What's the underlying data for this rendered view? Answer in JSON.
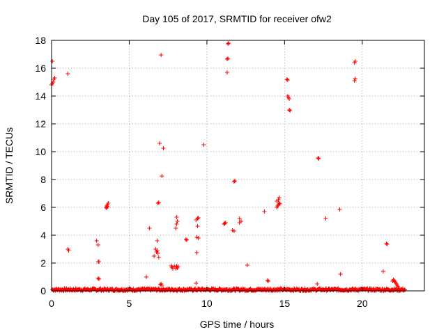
{
  "chart_data": {
    "type": "scatter",
    "title": "Day 105 of 2017, SRMTID for receiver ofw2",
    "xlabel": "GPS time / hours",
    "ylabel": "SRMTID / TECUs",
    "xlim": [
      0,
      24
    ],
    "ylim": [
      0,
      18
    ],
    "xticks": [
      0,
      5,
      10,
      15,
      20
    ],
    "yticks": [
      0,
      2,
      4,
      6,
      8,
      10,
      12,
      14,
      16,
      18
    ],
    "grid": true,
    "marker": "+",
    "color": "#ff0000",
    "baseline": {
      "x_start": 0.05,
      "x_end": 22.75,
      "y_min": 0.0,
      "y_max": 0.18
    },
    "series": [
      {
        "name": "SRMTID",
        "points": [
          [
            0.0,
            14.8
          ],
          [
            0.05,
            14.9
          ],
          [
            0.1,
            15.0
          ],
          [
            0.15,
            15.2
          ],
          [
            0.2,
            15.3
          ],
          [
            0.05,
            16.5
          ],
          [
            1.05,
            15.6
          ],
          [
            1.05,
            3.0
          ],
          [
            1.1,
            2.9
          ],
          [
            2.9,
            3.6
          ],
          [
            3.0,
            3.3
          ],
          [
            3.0,
            2.1
          ],
          [
            3.05,
            2.1
          ],
          [
            3.0,
            0.9
          ],
          [
            3.05,
            0.85
          ],
          [
            3.5,
            6.0
          ],
          [
            3.55,
            6.1
          ],
          [
            3.6,
            6.2
          ],
          [
            3.65,
            6.3
          ],
          [
            3.55,
            5.95
          ],
          [
            3.6,
            6.05
          ],
          [
            6.1,
            1.0
          ],
          [
            6.3,
            4.5
          ],
          [
            6.6,
            2.5
          ],
          [
            6.7,
            3.0
          ],
          [
            6.75,
            2.8
          ],
          [
            6.8,
            2.9
          ],
          [
            6.8,
            3.6
          ],
          [
            6.85,
            2.7
          ],
          [
            6.9,
            2.4
          ],
          [
            6.85,
            6.3
          ],
          [
            6.9,
            6.35
          ],
          [
            6.95,
            10.6
          ],
          [
            7.05,
            16.95
          ],
          [
            7.1,
            8.25
          ],
          [
            7.2,
            10.25
          ],
          [
            7.0,
            0.45
          ],
          [
            7.05,
            0.5
          ],
          [
            7.1,
            0.4
          ],
          [
            7.7,
            1.8
          ],
          [
            7.75,
            1.7
          ],
          [
            7.8,
            1.6
          ],
          [
            7.9,
            1.75
          ],
          [
            8.0,
            1.6
          ],
          [
            8.05,
            1.8
          ],
          [
            8.1,
            1.65
          ],
          [
            8.15,
            1.75
          ],
          [
            8.0,
            4.5
          ],
          [
            8.05,
            4.8
          ],
          [
            8.1,
            5.0
          ],
          [
            8.05,
            5.3
          ],
          [
            8.65,
            3.7
          ],
          [
            8.7,
            3.65
          ],
          [
            9.3,
            0.55
          ],
          [
            9.35,
            2.75
          ],
          [
            9.3,
            5.1
          ],
          [
            9.4,
            5.2
          ],
          [
            9.45,
            5.25
          ],
          [
            9.4,
            4.65
          ],
          [
            9.35,
            3.85
          ],
          [
            9.45,
            3.8
          ],
          [
            9.8,
            10.5
          ],
          [
            11.1,
            4.8
          ],
          [
            11.15,
            4.85
          ],
          [
            11.2,
            4.9
          ],
          [
            11.3,
            16.65
          ],
          [
            11.35,
            16.7
          ],
          [
            11.3,
            15.7
          ],
          [
            11.35,
            17.75
          ],
          [
            11.4,
            17.8
          ],
          [
            11.65,
            4.35
          ],
          [
            11.75,
            4.3
          ],
          [
            11.75,
            7.85
          ],
          [
            11.8,
            7.9
          ],
          [
            12.1,
            5.2
          ],
          [
            12.1,
            4.9
          ],
          [
            12.2,
            5.0
          ],
          [
            12.6,
            1.85
          ],
          [
            13.7,
            5.7
          ],
          [
            13.9,
            0.75
          ],
          [
            13.95,
            0.7
          ],
          [
            14.5,
            6.0
          ],
          [
            14.55,
            6.1
          ],
          [
            14.6,
            6.2
          ],
          [
            14.65,
            6.3
          ],
          [
            14.5,
            6.45
          ],
          [
            14.6,
            6.55
          ],
          [
            14.65,
            6.7
          ],
          [
            14.7,
            6.25
          ],
          [
            15.15,
            15.2
          ],
          [
            15.2,
            15.15
          ],
          [
            15.2,
            14.0
          ],
          [
            15.25,
            13.9
          ],
          [
            15.3,
            13.8
          ],
          [
            15.3,
            13.0
          ],
          [
            15.35,
            12.95
          ],
          [
            17.1,
            0.5
          ],
          [
            17.15,
            9.55
          ],
          [
            17.2,
            9.5
          ],
          [
            17.65,
            5.2
          ],
          [
            18.55,
            5.85
          ],
          [
            18.6,
            1.2
          ],
          [
            19.5,
            15.1
          ],
          [
            19.55,
            15.25
          ],
          [
            19.5,
            16.4
          ],
          [
            19.55,
            16.5
          ],
          [
            21.35,
            1.4
          ],
          [
            21.55,
            3.4
          ],
          [
            21.6,
            3.35
          ],
          [
            21.95,
            0.7
          ],
          [
            22.0,
            0.8
          ],
          [
            22.05,
            0.75
          ],
          [
            22.1,
            0.65
          ],
          [
            22.15,
            0.6
          ],
          [
            22.2,
            0.5
          ],
          [
            22.25,
            0.4
          ],
          [
            22.3,
            0.3
          ],
          [
            22.35,
            0.2
          ]
        ]
      }
    ]
  }
}
